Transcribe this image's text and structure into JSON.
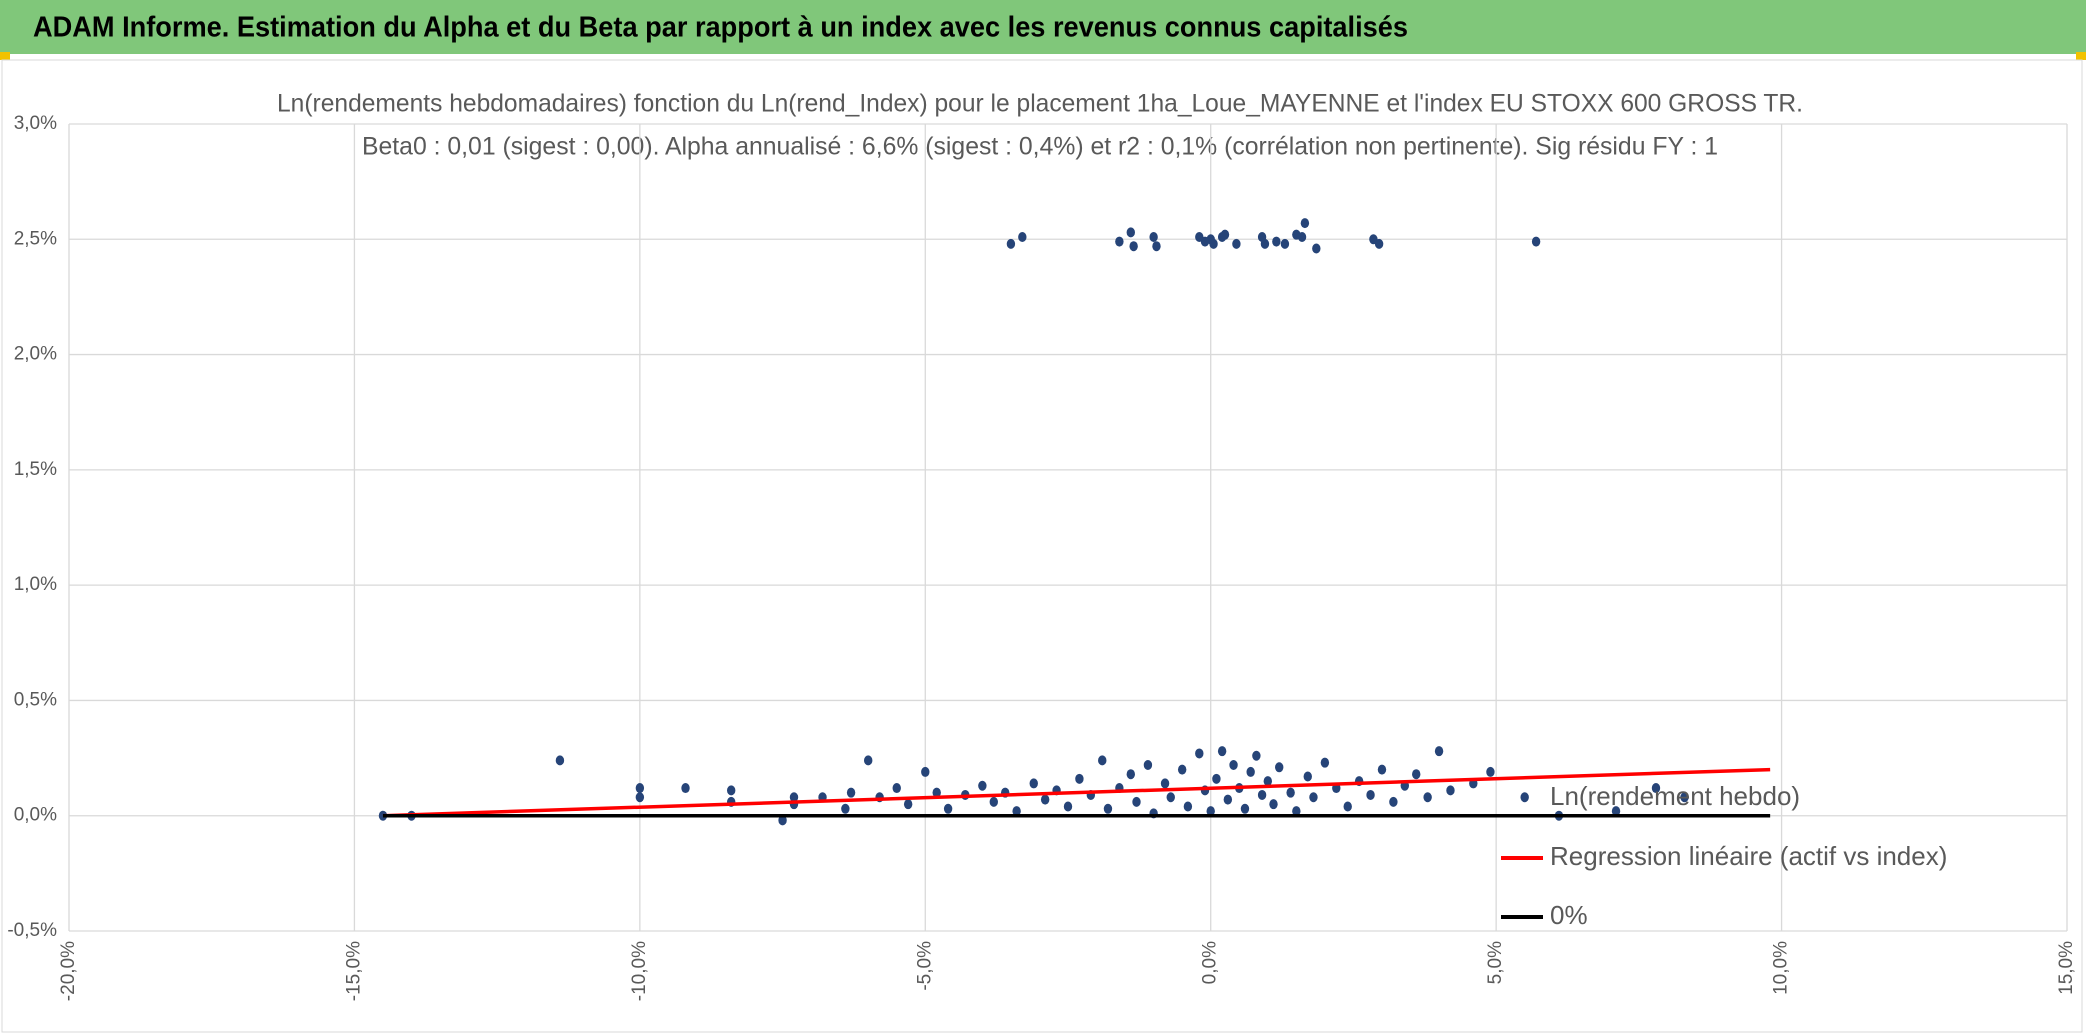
{
  "header": {
    "title": "ADAM Informe. Estimation du Alpha et du Beta par rapport à un index avec les revenus connus capitalisés"
  },
  "chart_data": {
    "type": "scatter",
    "title": "Ln(rendements hebdomadaires) fonction du Ln(rend_Index) pour le placement 1ha_Loue_MAYENNE et l'index EU STOXX 600 GROSS TR.",
    "subtitle": "Beta0 : 0,01 (sigest : 0,00). Alpha annualisé : 6,6% (sigest : 0,4%) et r2 : 0,1% (corrélation non pertinente). Sig résidu FY : 1",
    "xlim": [
      -20,
      15
    ],
    "xticks": [
      {
        "value": -20,
        "label": "-20,0%"
      },
      {
        "value": -15,
        "label": "-15,0%"
      },
      {
        "value": -10,
        "label": "-10,0%"
      },
      {
        "value": -5,
        "label": "-5,0%"
      },
      {
        "value": 0,
        "label": "0,0%"
      },
      {
        "value": 5,
        "label": "5,0%"
      },
      {
        "value": 10,
        "label": "10,0%"
      },
      {
        "value": 15,
        "label": "15,0%"
      }
    ],
    "ylim": [
      -0.5,
      3.0
    ],
    "yticks": [
      {
        "value": -0.5,
        "label": "-0,5%"
      },
      {
        "value": 0,
        "label": "0,0%"
      },
      {
        "value": 0.5,
        "label": "0,5%"
      },
      {
        "value": 1.0,
        "label": "1,0%"
      },
      {
        "value": 1.5,
        "label": "1,5%"
      },
      {
        "value": 2.0,
        "label": "2,0%"
      },
      {
        "value": 2.5,
        "label": "2,5%"
      },
      {
        "value": 3.0,
        "label": "3,0%"
      }
    ],
    "grid": true,
    "series": [
      {
        "name": "Ln(rendement hebdo)",
        "color": "#264478",
        "mode": "markers",
        "x": [
          -3.5,
          -3.3,
          -1.6,
          -1.4,
          -1.35,
          -1.0,
          -0.95,
          -0.2,
          -0.1,
          0.05,
          0.2,
          0.25,
          0.45,
          0.9,
          0.95,
          1.15,
          1.3,
          1.5,
          1.65,
          1.85,
          1.6,
          2.85,
          2.95,
          5.7,
          0.0,
          -14.5,
          -14.0,
          -11.4,
          -10.0,
          -10.0,
          -9.2,
          -8.4,
          -8.4,
          -7.5,
          -7.3,
          -7.3,
          -6.8,
          -6.4,
          -6.3,
          -6.0,
          -5.0,
          5.5,
          6.1,
          7.1,
          7.8,
          8.3,
          -5.8,
          -5.5,
          -5.3,
          -4.8,
          -4.6,
          -4.3,
          -4.0,
          -3.8,
          -3.6,
          -3.4,
          -3.1,
          -2.9,
          -2.7,
          -2.5,
          -2.3,
          -2.1,
          -1.9,
          -1.8,
          -1.6,
          -1.4,
          -1.3,
          -1.1,
          -1.0,
          -0.8,
          -0.7,
          -0.5,
          -0.4,
          -0.2,
          -0.1,
          0.0,
          0.1,
          0.2,
          0.3,
          0.4,
          0.5,
          0.6,
          0.7,
          0.8,
          0.9,
          1.0,
          1.1,
          1.2,
          1.4,
          1.5,
          1.7,
          1.8,
          2.0,
          2.2,
          2.4,
          2.6,
          2.8,
          3.0,
          3.2,
          3.4,
          3.6,
          3.8,
          4.0,
          4.2,
          4.6,
          4.9
        ],
        "values": [
          2.48,
          2.51,
          2.49,
          2.53,
          2.47,
          2.51,
          2.47,
          2.51,
          2.49,
          2.48,
          2.51,
          2.52,
          2.48,
          2.51,
          2.48,
          2.49,
          2.48,
          2.52,
          2.57,
          2.46,
          2.51,
          2.5,
          2.48,
          2.49,
          2.5,
          0.0,
          0.0,
          0.24,
          0.12,
          0.08,
          0.12,
          0.11,
          0.06,
          -0.02,
          0.08,
          0.05,
          0.08,
          0.03,
          0.1,
          0.24,
          0.19,
          0.08,
          0.0,
          0.02,
          0.12,
          0.08,
          0.08,
          0.12,
          0.05,
          0.1,
          0.03,
          0.09,
          0.13,
          0.06,
          0.1,
          0.02,
          0.14,
          0.07,
          0.11,
          0.04,
          0.16,
          0.09,
          0.24,
          0.03,
          0.12,
          0.18,
          0.06,
          0.22,
          0.01,
          0.14,
          0.08,
          0.2,
          0.04,
          0.27,
          0.11,
          0.02,
          0.16,
          0.28,
          0.07,
          0.22,
          0.12,
          0.03,
          0.19,
          0.26,
          0.09,
          0.15,
          0.05,
          0.21,
          0.1,
          0.02,
          0.17,
          0.08,
          0.23,
          0.12,
          0.04,
          0.15,
          0.09,
          0.2,
          0.06,
          0.13,
          0.18,
          0.08,
          0.28,
          0.11,
          0.14,
          0.19
        ]
      },
      {
        "name": "Regression linéaire (actif vs index)",
        "color": "#ff0000",
        "mode": "line",
        "x": [
          -14.5,
          9.8
        ],
        "values": [
          0.0,
          0.2
        ]
      },
      {
        "name": "0%",
        "color": "#000000",
        "mode": "line",
        "x": [
          -14.5,
          9.8
        ],
        "values": [
          0.0,
          0.0
        ]
      }
    ]
  }
}
